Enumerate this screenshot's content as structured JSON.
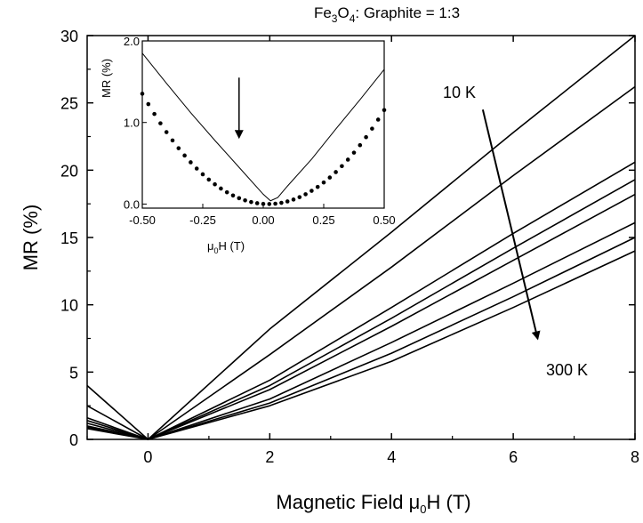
{
  "chart_data": {
    "type": "line",
    "title": {
      "main": "Fe",
      "sub1": "3",
      "mid": "O",
      "sub2": "4",
      "rest": ": Graphite = 1:3"
    },
    "xlabel": {
      "pre": "Magnetic Field  μ",
      "sub": "0",
      "post": "H (T)"
    },
    "ylabel": "MR (%)",
    "xlim": [
      -1,
      8
    ],
    "ylim": [
      0,
      30
    ],
    "xticks": [
      0,
      2,
      4,
      6,
      8
    ],
    "yticks": [
      0,
      5,
      10,
      15,
      20,
      25,
      30
    ],
    "xtick_labels": [
      "0",
      "2",
      "4",
      "6",
      "8"
    ],
    "ytick_labels": [
      "0",
      "5",
      "10",
      "15",
      "20",
      "25",
      "30"
    ],
    "series": [
      {
        "points": [
          [
            -1,
            4.0
          ],
          [
            0,
            0
          ],
          [
            2,
            8.2
          ],
          [
            4,
            15.4
          ],
          [
            6,
            22.8
          ],
          [
            8,
            30.0
          ]
        ]
      },
      {
        "points": [
          [
            -1,
            2.5
          ],
          [
            0,
            0
          ],
          [
            2,
            6.3
          ],
          [
            4,
            12.8
          ],
          [
            6,
            19.6
          ],
          [
            8,
            26.2
          ]
        ]
      },
      {
        "points": [
          [
            -1,
            1.6
          ],
          [
            0,
            0
          ],
          [
            2,
            4.4
          ],
          [
            4,
            9.8
          ],
          [
            6,
            15.3
          ],
          [
            8,
            20.6
          ]
        ]
      },
      {
        "points": [
          [
            -1,
            1.4
          ],
          [
            0,
            0
          ],
          [
            2,
            4.0
          ],
          [
            4,
            9.0
          ],
          [
            6,
            14.2
          ],
          [
            8,
            19.3
          ]
        ]
      },
      {
        "points": [
          [
            -1,
            1.2
          ],
          [
            0,
            0
          ],
          [
            2,
            3.7
          ],
          [
            4,
            8.4
          ],
          [
            6,
            13.3
          ],
          [
            8,
            18.2
          ]
        ]
      },
      {
        "points": [
          [
            -1,
            1.0
          ],
          [
            0,
            0
          ],
          [
            2,
            3.0
          ],
          [
            4,
            7.2
          ],
          [
            6,
            11.6
          ],
          [
            8,
            16.1
          ]
        ]
      },
      {
        "points": [
          [
            -1,
            0.9
          ],
          [
            0,
            0
          ],
          [
            2,
            2.7
          ],
          [
            4,
            6.4
          ],
          [
            6,
            10.6
          ],
          [
            8,
            15.0
          ]
        ]
      },
      {
        "points": [
          [
            -1,
            0.8
          ],
          [
            0,
            0
          ],
          [
            2,
            2.5
          ],
          [
            4,
            5.8
          ],
          [
            6,
            9.8
          ],
          [
            8,
            14.0
          ]
        ]
      }
    ],
    "annotations": {
      "top_label": "10 K",
      "bottom_label": "300 K",
      "arrow_from": [
        5.5,
        24.5
      ],
      "arrow_to": [
        6.4,
        7.5
      ]
    },
    "inset": {
      "xlabel": {
        "pre": "μ",
        "sub": "0",
        "post": "H (T)"
      },
      "ylabel": "MR (%)",
      "xlim": [
        -0.5,
        0.5
      ],
      "ylim": [
        -0.05,
        2.0
      ],
      "xticks": [
        -0.5,
        -0.25,
        0.0,
        0.25,
        0.5
      ],
      "yticks": [
        0.0,
        1.0,
        2.0
      ],
      "xtick_labels": [
        "-0.50",
        "-0.25",
        "0.00",
        "0.25",
        "0.50"
      ],
      "ytick_labels": [
        "0.0",
        "1.0",
        "2.0"
      ],
      "line": [
        [
          -0.5,
          1.85
        ],
        [
          -0.4,
          1.48
        ],
        [
          -0.3,
          1.12
        ],
        [
          -0.2,
          0.78
        ],
        [
          -0.1,
          0.45
        ],
        [
          0.0,
          0.12
        ],
        [
          0.03,
          0.04
        ],
        [
          0.06,
          0.08
        ],
        [
          0.1,
          0.22
        ],
        [
          0.2,
          0.55
        ],
        [
          0.3,
          0.92
        ],
        [
          0.4,
          1.28
        ],
        [
          0.5,
          1.65
        ]
      ],
      "dots": {
        "center": 0.02,
        "coeff": 5.0,
        "min": 0.0
      },
      "arrow_x": -0.1,
      "arrow_from_y": 1.55,
      "arrow_to_y": 0.82
    }
  }
}
